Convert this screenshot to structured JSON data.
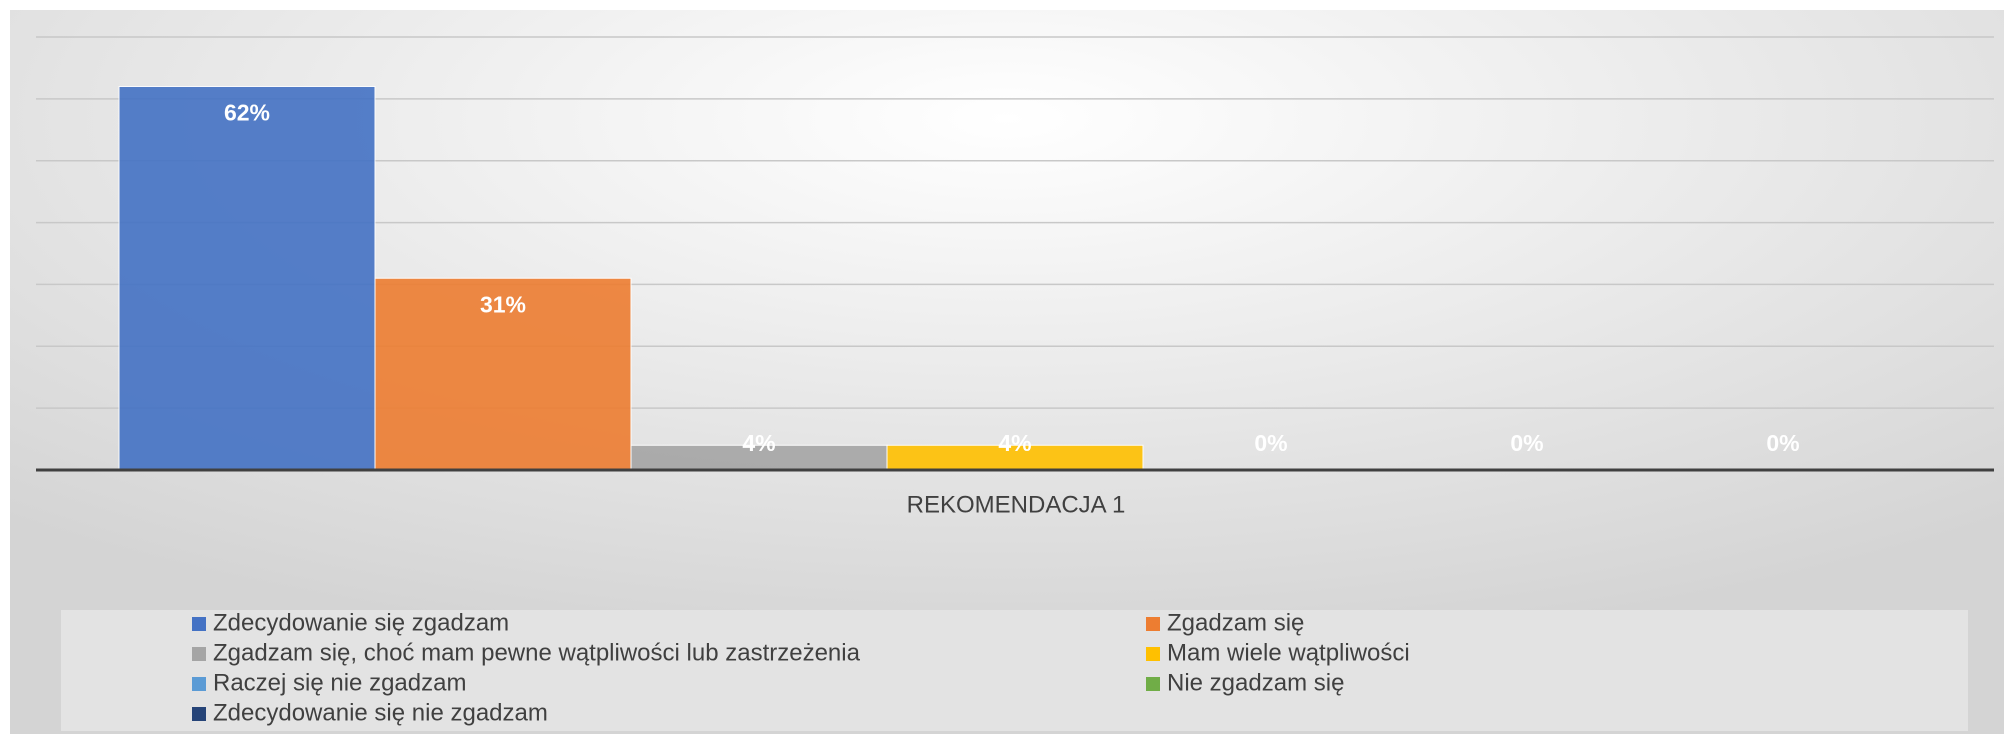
{
  "chart_data": {
    "type": "bar",
    "categories": [
      "REKOMENDACJA 1"
    ],
    "series": [
      {
        "name": "Zdecydowanie się zgadzam",
        "color": "#4472c4",
        "values": [
          62
        ],
        "value_labels": [
          "62%"
        ]
      },
      {
        "name": "Zgadzam się",
        "color": "#ed7d31",
        "values": [
          31
        ],
        "value_labels": [
          "31%"
        ]
      },
      {
        "name": "Zgadzam się, choć mam pewne wątpliwości lub zastrzeżenia",
        "color": "#a5a5a5",
        "values": [
          4
        ],
        "value_labels": [
          "4%"
        ]
      },
      {
        "name": "Mam wiele wątpliwości",
        "color": "#ffc000",
        "values": [
          4
        ],
        "value_labels": [
          "4%"
        ]
      },
      {
        "name": "Raczej się nie zgadzam",
        "color": "#5b9bd5",
        "values": [
          0
        ],
        "value_labels": [
          "0%"
        ]
      },
      {
        "name": "Nie zgadzam się",
        "color": "#70ad47",
        "values": [
          0
        ],
        "value_labels": [
          "0%"
        ]
      },
      {
        "name": "Zdecydowanie się nie zgadzam",
        "color": "#264478",
        "values": [
          0
        ],
        "value_labels": [
          "0%"
        ]
      }
    ],
    "ylim": [
      0,
      70
    ],
    "yticks": [
      0,
      10,
      20,
      30,
      40,
      50,
      60,
      70
    ],
    "grid": true,
    "legend": "bottom"
  }
}
